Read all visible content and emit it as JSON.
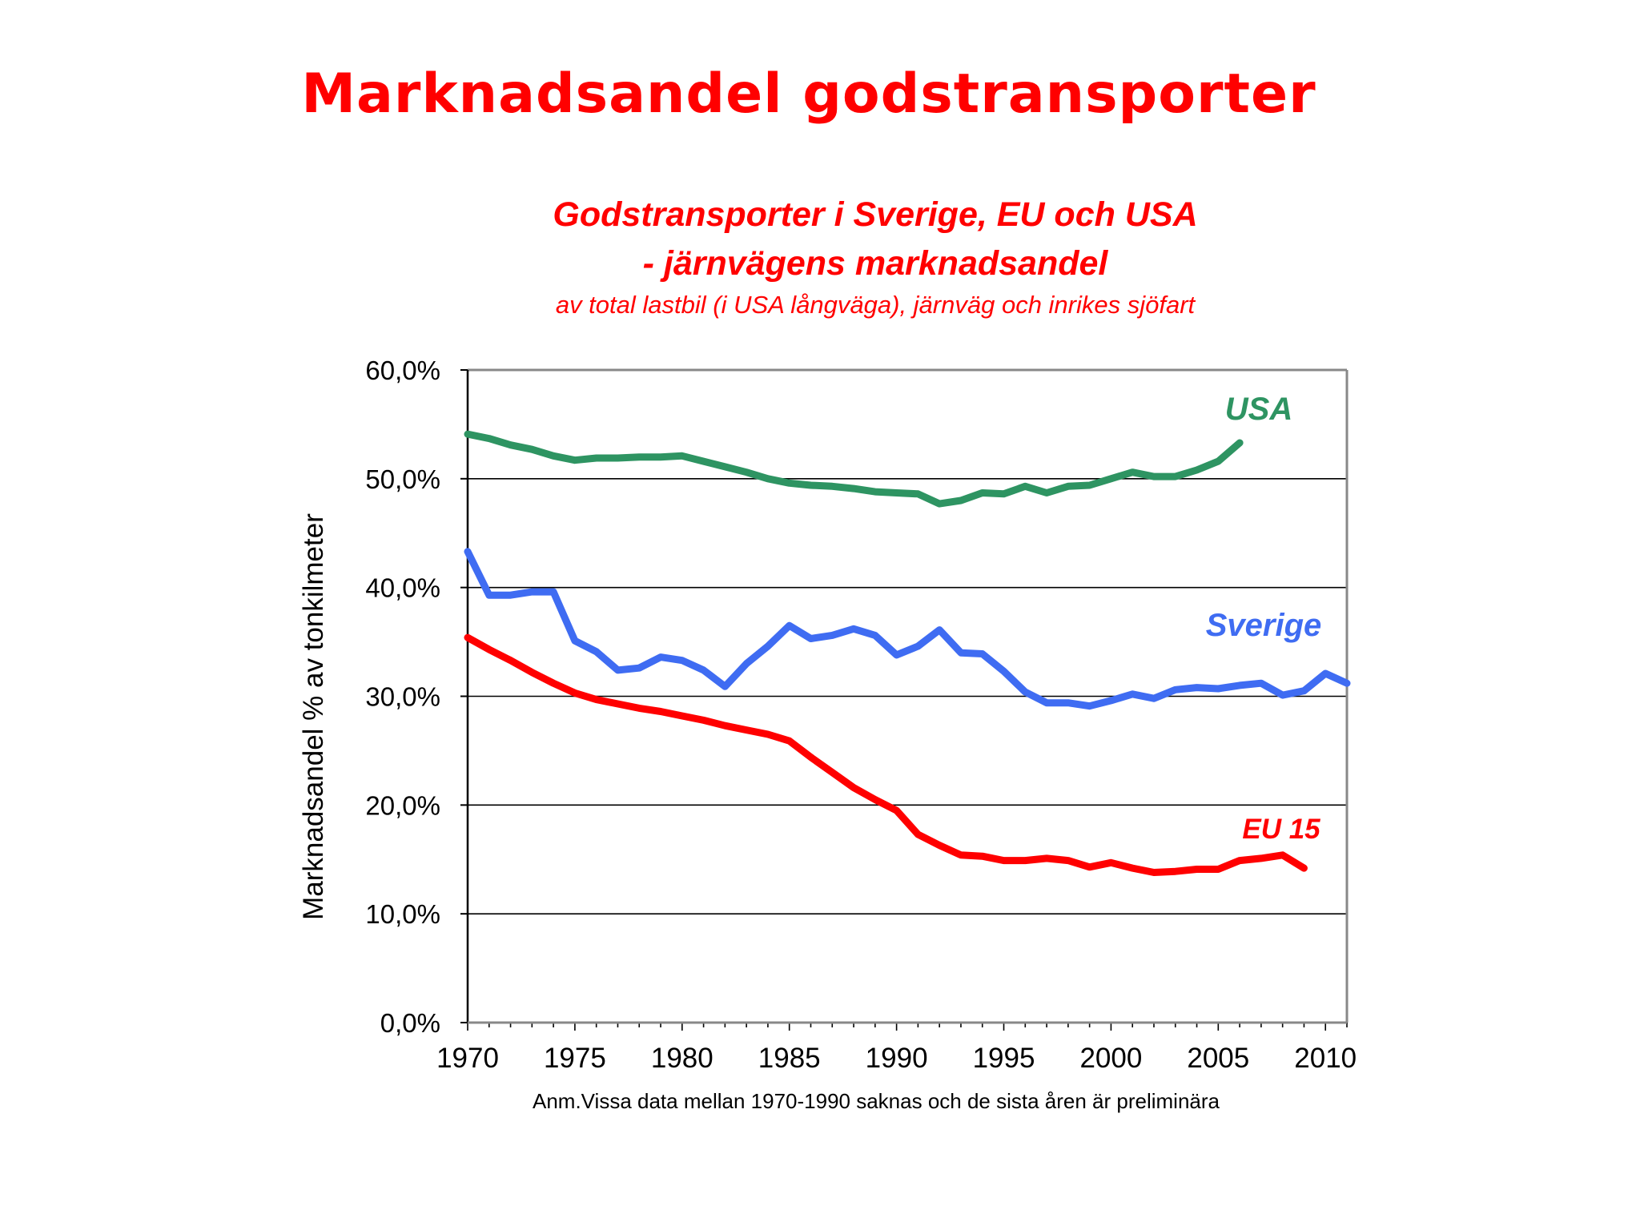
{
  "slide": {
    "title": "Marknadsandel godstransporter"
  },
  "chart_data": {
    "type": "line",
    "title_lines": [
      "Godstransporter i Sverige, EU och USA",
      "- järnvägens marknadsandel"
    ],
    "subtitle": "av total lastbil (i USA långväga), järnväg och inrikes sjöfart",
    "ylabel": "Marknadsandel  % av tonkilmeter",
    "xlabel": "",
    "note": "Anm.Vissa data mellan  1970-1990 saknas och de sista åren är preliminära",
    "xlim": [
      1970,
      2011
    ],
    "ylim": [
      0,
      60
    ],
    "x_ticks": [
      "1970",
      "1975",
      "1980",
      "1985",
      "1990",
      "1995",
      "2000",
      "2005",
      "2010"
    ],
    "y_ticks": [
      "0,0%",
      "10,0%",
      "20,0%",
      "30,0%",
      "40,0%",
      "50,0%",
      "60,0%"
    ],
    "grid": true,
    "series": [
      {
        "name": "USA",
        "color": "#2e9462",
        "x": [
          1970,
          1971,
          1972,
          1973,
          1974,
          1975,
          1976,
          1977,
          1978,
          1979,
          1980,
          1981,
          1982,
          1983,
          1984,
          1985,
          1986,
          1987,
          1988,
          1989,
          1990,
          1991,
          1992,
          1993,
          1994,
          1995,
          1996,
          1997,
          1998,
          1999,
          2000,
          2001,
          2002,
          2003,
          2004,
          2005,
          2006
        ],
        "values": [
          54.1,
          53.7,
          53.1,
          52.7,
          52.1,
          51.7,
          51.9,
          51.9,
          52.0,
          52.0,
          52.1,
          51.6,
          51.1,
          50.6,
          50.0,
          49.6,
          49.4,
          49.3,
          49.1,
          48.8,
          48.7,
          48.6,
          47.7,
          48.0,
          48.7,
          48.6,
          49.3,
          48.7,
          49.3,
          49.4,
          50.0,
          50.6,
          50.2,
          50.2,
          50.8,
          51.6,
          53.3
        ]
      },
      {
        "name": "Sverige",
        "color": "#3f6cf2",
        "x": [
          1970,
          1971,
          1972,
          1973,
          1974,
          1975,
          1976,
          1977,
          1978,
          1979,
          1980,
          1981,
          1982,
          1983,
          1984,
          1985,
          1986,
          1987,
          1988,
          1989,
          1990,
          1991,
          1992,
          1993,
          1994,
          1995,
          1996,
          1997,
          1998,
          1999,
          2000,
          2001,
          2002,
          2003,
          2004,
          2005,
          2006,
          2007,
          2008,
          2009,
          2010,
          2011
        ],
        "values": [
          43.3,
          39.3,
          39.3,
          39.6,
          39.6,
          35.1,
          34.1,
          32.4,
          32.6,
          33.6,
          33.3,
          32.4,
          30.9,
          33.0,
          34.6,
          36.5,
          35.3,
          35.6,
          36.2,
          35.6,
          33.8,
          34.6,
          36.1,
          34.0,
          33.9,
          32.3,
          30.4,
          29.4,
          29.4,
          29.1,
          29.6,
          30.2,
          29.8,
          30.6,
          30.8,
          30.7,
          31.0,
          31.2,
          30.1,
          30.5,
          32.1,
          31.2
        ]
      },
      {
        "name": "EU 15",
        "color": "#ff0000",
        "x": [
          1970,
          1971,
          1972,
          1973,
          1974,
          1975,
          1976,
          1977,
          1978,
          1979,
          1980,
          1981,
          1982,
          1983,
          1984,
          1985,
          1986,
          1987,
          1988,
          1989,
          1990,
          1991,
          1992,
          1993,
          1994,
          1995,
          1996,
          1997,
          1998,
          1999,
          2000,
          2001,
          2002,
          2003,
          2004,
          2005,
          2006,
          2007,
          2008,
          2009
        ],
        "values": [
          35.4,
          34.3,
          33.3,
          32.2,
          31.2,
          30.3,
          29.7,
          29.3,
          28.9,
          28.6,
          28.2,
          27.8,
          27.3,
          26.9,
          26.5,
          25.9,
          24.4,
          23.0,
          21.6,
          20.5,
          19.5,
          17.3,
          16.3,
          15.4,
          15.3,
          14.9,
          14.9,
          15.1,
          14.9,
          14.3,
          14.7,
          14.2,
          13.8,
          13.9,
          14.1,
          14.1,
          14.9,
          15.1,
          15.4,
          14.2
        ]
      }
    ]
  }
}
